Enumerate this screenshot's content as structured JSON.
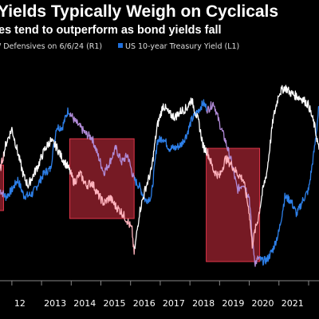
{
  "title": "Yields Typically Weigh on Cyclicals",
  "subtitle": "es tend to outperform as bond yields fall",
  "legend": [
    {
      "label": "/ Defensives on 6/6/24 (R1)",
      "color": "#ffffff"
    },
    {
      "label": "US 10-year Treasury Yield (L1)",
      "color": "#1f6fdc"
    }
  ],
  "colors": {
    "background": "#000000",
    "band_fill": "#8b1e2a",
    "band_stroke": "#e0364a",
    "ratio": "#ffffff",
    "yield": "#2d7fe8",
    "ratio_in_band": "#ffb3bd",
    "yield_in_band": "#b08ad6"
  },
  "chart_data": {
    "type": "line",
    "x_ticks": [
      "2012",
      "2013",
      "2014",
      "2015",
      "2016",
      "2017",
      "2018",
      "2019",
      "2020",
      "2021",
      "2022"
    ],
    "x_tick_labels": [
      "12",
      "2013",
      "2014",
      "2015",
      "2016",
      "2017",
      "2018",
      "2019",
      "2020",
      "2021",
      ""
    ],
    "xlim": [
      2011.6,
      2022.35
    ],
    "ylim_left": [
      0.4,
      3.6
    ],
    "ylim_right": [
      0.25,
      1.0
    ],
    "shaded_periods": [
      {
        "start": 2011.55,
        "end": 2011.72
      },
      {
        "start": 2013.95,
        "end": 2016.12
      },
      {
        "start": 2018.55,
        "end": 2020.35
      }
    ],
    "series": [
      {
        "name": "/ Defensives on 6/6/24 (R1)",
        "axis": "right",
        "x": [
          2011.6,
          2011.8,
          2012.0,
          2012.2,
          2012.4,
          2012.55,
          2012.7,
          2012.9,
          2013.1,
          2013.3,
          2013.5,
          2013.7,
          2013.9,
          2014.1,
          2014.3,
          2014.5,
          2014.7,
          2014.9,
          2015.1,
          2015.3,
          2015.5,
          2015.7,
          2015.9,
          2016.05,
          2016.12,
          2016.3,
          2016.5,
          2016.7,
          2016.9,
          2017.1,
          2017.3,
          2017.5,
          2017.7,
          2017.9,
          2018.05,
          2018.3,
          2018.45,
          2018.6,
          2018.8,
          2019.0,
          2019.2,
          2019.4,
          2019.6,
          2019.8,
          2020.0,
          2020.1,
          2020.2,
          2020.3,
          2020.45,
          2020.6,
          2020.8,
          2021.0,
          2021.2,
          2021.4,
          2021.6,
          2021.8,
          2022.0,
          2022.2,
          2022.35
        ],
        "values": [
          0.62,
          0.71,
          0.76,
          0.68,
          0.6,
          0.57,
          0.6,
          0.64,
          0.69,
          0.72,
          0.7,
          0.66,
          0.63,
          0.58,
          0.61,
          0.57,
          0.58,
          0.54,
          0.51,
          0.53,
          0.5,
          0.48,
          0.45,
          0.42,
          0.34,
          0.48,
          0.56,
          0.62,
          0.77,
          0.84,
          0.81,
          0.8,
          0.82,
          0.83,
          0.86,
          0.78,
          0.7,
          0.68,
          0.62,
          0.6,
          0.66,
          0.64,
          0.61,
          0.59,
          0.48,
          0.37,
          0.42,
          0.46,
          0.55,
          0.62,
          0.79,
          0.88,
          0.9,
          0.88,
          0.87,
          0.86,
          0.84,
          0.77,
          0.69
        ]
      },
      {
        "name": "US 10-year Treasury Yield (L1)",
        "axis": "left",
        "x": [
          2011.6,
          2011.8,
          2012.0,
          2012.2,
          2012.4,
          2012.55,
          2012.7,
          2012.9,
          2013.1,
          2013.3,
          2013.5,
          2013.7,
          2013.9,
          2014.1,
          2014.3,
          2014.5,
          2014.7,
          2014.9,
          2015.1,
          2015.3,
          2015.5,
          2015.7,
          2015.9,
          2016.05,
          2016.12,
          2016.3,
          2016.5,
          2016.7,
          2016.9,
          2017.1,
          2017.3,
          2017.5,
          2017.7,
          2017.9,
          2018.05,
          2018.3,
          2018.45,
          2018.6,
          2018.8,
          2019.0,
          2019.2,
          2019.4,
          2019.6,
          2019.8,
          2020.0,
          2020.1,
          2020.2,
          2020.3,
          2020.45,
          2020.6,
          2020.8,
          2021.0,
          2021.2,
          2021.4,
          2021.6,
          2021.8,
          2022.0,
          2022.2,
          2022.35
        ],
        "values": [
          1.7,
          1.6,
          1.7,
          1.85,
          1.62,
          1.62,
          1.65,
          1.8,
          1.95,
          2.0,
          2.6,
          2.6,
          2.85,
          2.7,
          2.6,
          2.5,
          2.45,
          2.2,
          1.95,
          2.1,
          2.3,
          2.1,
          2.2,
          1.95,
          1.85,
          1.75,
          1.55,
          1.6,
          2.4,
          2.45,
          2.3,
          2.3,
          2.35,
          2.5,
          2.7,
          2.85,
          2.95,
          2.85,
          2.95,
          2.65,
          2.4,
          2.1,
          1.7,
          1.8,
          1.6,
          1.0,
          0.65,
          0.72,
          0.68,
          0.7,
          0.85,
          1.1,
          1.6,
          1.55,
          1.35,
          1.55,
          1.7,
          2.3,
          2.9
        ]
      }
    ]
  }
}
